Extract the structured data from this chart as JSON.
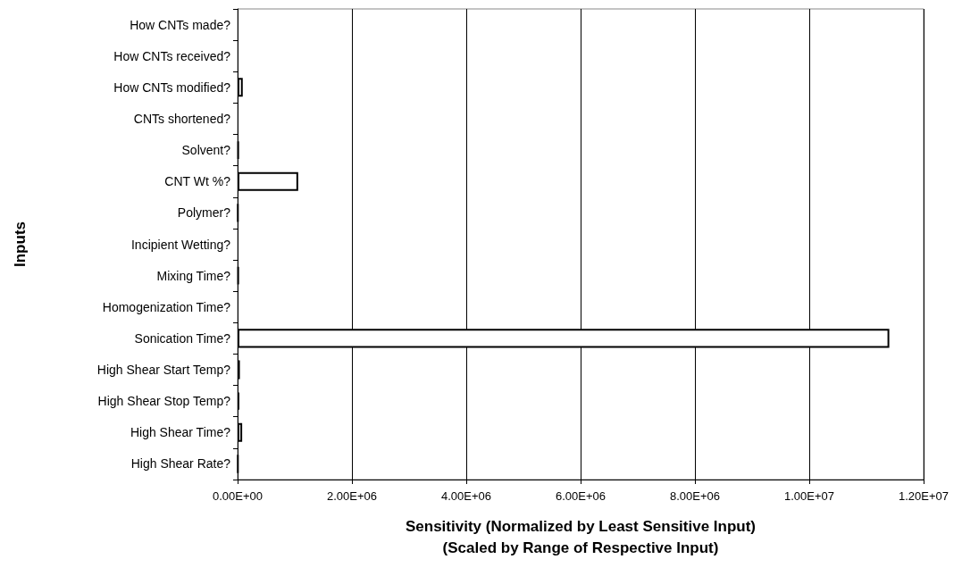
{
  "chart_data": {
    "type": "bar",
    "orientation": "horizontal",
    "ylabel": "Inputs",
    "xlabel": "Sensitivity (Normalized by Least Sensitive Input)\n(Scaled by Range of Respective Input)",
    "categories": [
      "How CNTs made?",
      "How CNTs received?",
      "How CNTs modified?",
      "CNTs shortened?",
      "Solvent?",
      "CNT Wt %?",
      "Polymer?",
      "Incipient Wetting?",
      "Mixing Time?",
      "Homogenization Time?",
      "Sonication Time?",
      "High Shear Start Temp?",
      "High Shear Stop Temp?",
      "High Shear Time?",
      "High Shear Rate?"
    ],
    "values": [
      0,
      0,
      90000,
      0,
      20000,
      1060000,
      10000,
      0,
      20000,
      0,
      11400000,
      40000,
      30000,
      80000,
      10000
    ],
    "colors": [
      "#ffffff",
      "#ffffff",
      "#ffffff",
      "#ffffff",
      "#000000",
      "#ffffff",
      "#000000",
      "#ffffff",
      "#000000",
      "#ffffff",
      "#ffffff",
      "#000000",
      "#000000",
      "#ffffff",
      "#000000"
    ],
    "xlim": [
      0,
      12000000
    ],
    "xticks": [
      {
        "value": 0,
        "label": "0.00E+00"
      },
      {
        "value": 2000000,
        "label": "2.00E+06"
      },
      {
        "value": 4000000,
        "label": "4.00E+06"
      },
      {
        "value": 6000000,
        "label": "6.00E+06"
      },
      {
        "value": 8000000,
        "label": "8.00E+06"
      },
      {
        "value": 10000000,
        "label": "1.00E+07"
      },
      {
        "value": 12000000,
        "label": "1.20E+07"
      }
    ],
    "grid": "x"
  }
}
